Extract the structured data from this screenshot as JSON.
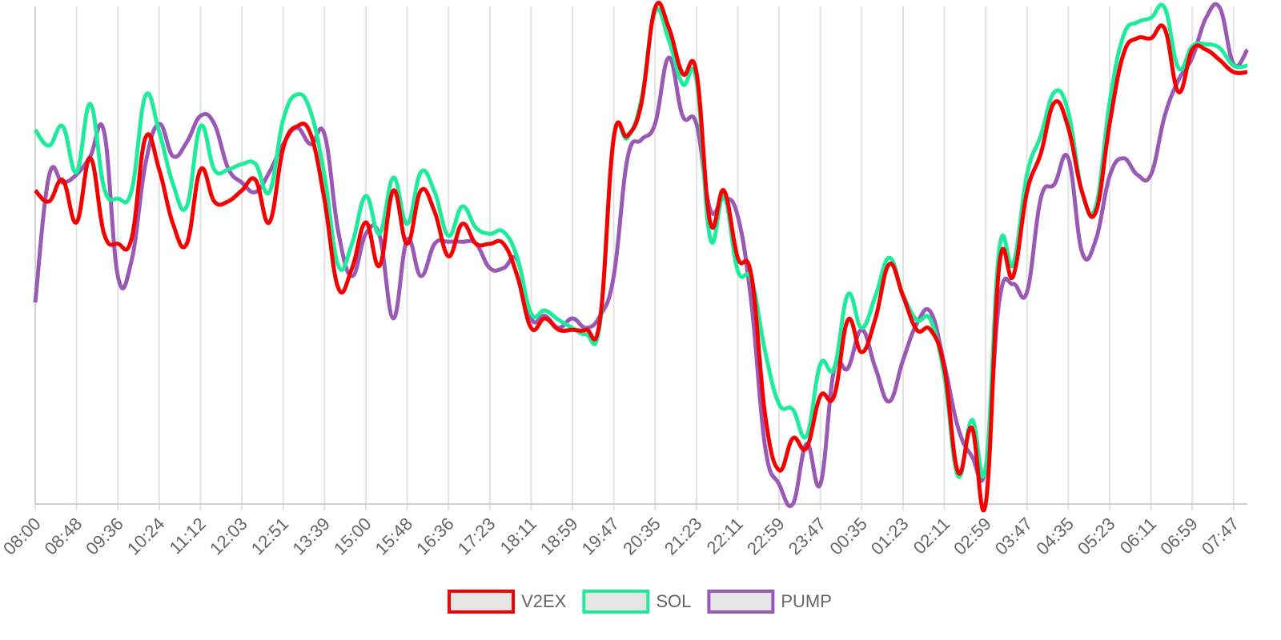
{
  "chart_data": {
    "type": "line",
    "categories": [
      "08:00",
      null,
      null,
      "08:48",
      null,
      null,
      "09:36",
      null,
      null,
      "10:24",
      null,
      null,
      "11:12",
      null,
      null,
      "12:03",
      null,
      null,
      "12:51",
      null,
      null,
      "13:39",
      null,
      null,
      "15:00",
      null,
      null,
      "15:48",
      null,
      null,
      "16:36",
      null,
      null,
      "17:23",
      null,
      null,
      "18:11",
      null,
      null,
      "18:59",
      null,
      null,
      "19:47",
      null,
      null,
      "20:35",
      null,
      null,
      "21:23",
      null,
      null,
      "22:11",
      null,
      null,
      "22:59",
      null,
      null,
      "23:47",
      null,
      null,
      "00:35",
      null,
      null,
      "01:23",
      null,
      null,
      "02:11",
      null,
      null,
      "02:59",
      null,
      null,
      "03:47",
      null,
      null,
      "04:35",
      null,
      null,
      "05:23",
      null,
      null,
      "06:11",
      null,
      null,
      "06:59",
      null,
      null,
      "07:47",
      null
    ],
    "ylim": [
      0,
      100
    ],
    "x_grid": true,
    "legend": "bottom",
    "series": [
      {
        "name": "V2EX",
        "color": "#f40000",
        "values": [
          63.0,
          60.8,
          65.1,
          56.6,
          69.5,
          54.3,
          52.3,
          53.4,
          73.6,
          67.2,
          56.3,
          52.3,
          67.2,
          60.8,
          60.8,
          63.0,
          65.1,
          56.6,
          71.5,
          75.9,
          74.3,
          61.1,
          43.4,
          47.4,
          56.6,
          47.9,
          63.0,
          52.3,
          63.0,
          58.7,
          49.8,
          56.3,
          52.3,
          52.3,
          52.3,
          45.8,
          35.4,
          37.3,
          35.0,
          35.0,
          35.0,
          37.0,
          73.6,
          74.0,
          80.4,
          99.7,
          95.7,
          86.5,
          86.8,
          56.6,
          63.0,
          49.5,
          45.8,
          17.7,
          6.8,
          13.2,
          11.3,
          21.7,
          21.7,
          37.0,
          30.5,
          37.3,
          48.2,
          41.8,
          35.0,
          35.0,
          27.3,
          6.4,
          15.3,
          0,
          48.2,
          45.8,
          62.7,
          70.4,
          80.7,
          75.6,
          62.7,
          58.7,
          76.4,
          90.4,
          93.6,
          93.6,
          95.5,
          82.8,
          91.3,
          91.3,
          89.2,
          86.8,
          86.8
        ]
      },
      {
        "name": "SOL",
        "color": "#1eeb9b",
        "values": [
          75.2,
          72.0,
          75.9,
          66.7,
          80.4,
          63.5,
          61.4,
          63.0,
          82.0,
          74.8,
          64.3,
          59.8,
          75.9,
          67.2,
          67.2,
          68.3,
          68.3,
          62.7,
          77.2,
          82.3,
          78.8,
          65.9,
          47.9,
          52.3,
          61.9,
          54.3,
          65.6,
          56.3,
          66.7,
          62.7,
          53.9,
          59.8,
          55.5,
          54.3,
          54.7,
          49.5,
          38.3,
          38.9,
          37.0,
          35.4,
          34.1,
          36.2,
          73.6,
          73.6,
          81.2,
          98.9,
          93.2,
          84.4,
          85.2,
          53.4,
          61.9,
          46.9,
          45.0,
          30.5,
          20.1,
          19.0,
          13.7,
          28.1,
          27.3,
          42.1,
          35.4,
          41.8,
          49.5,
          42.1,
          37.0,
          37.0,
          25.7,
          5.6,
          16.9,
          7.2,
          51.4,
          48.2,
          66.2,
          74.0,
          82.8,
          78.8,
          62.7,
          59.8,
          80.7,
          94.1,
          96.8,
          97.7,
          99.7,
          87.6,
          92.0,
          92.4,
          91.6,
          88.1,
          88.1
        ]
      },
      {
        "name": "PUMP",
        "color": "#9b59b6",
        "values": [
          40.5,
          65.9,
          64.6,
          66.2,
          69.9,
          74.8,
          45.8,
          49.0,
          68.3,
          76.4,
          69.9,
          72.7,
          78.0,
          76.4,
          67.5,
          64.6,
          62.7,
          66.7,
          72.3,
          75.6,
          72.3,
          74.3,
          54.7,
          45.8,
          54.3,
          53.9,
          37.3,
          53.1,
          45.8,
          52.3,
          52.7,
          52.7,
          52.3,
          47.4,
          47.4,
          49.0,
          37.3,
          37.8,
          35.4,
          37.3,
          35.4,
          37.8,
          45.8,
          69.5,
          73.2,
          76.4,
          89.7,
          78.0,
          76.4,
          59.2,
          61.4,
          57.9,
          40.2,
          11.3,
          4.0,
          0,
          12.1,
          4.0,
          27.0,
          27.3,
          35.0,
          27.3,
          20.6,
          28.9,
          36.2,
          38.6,
          28.1,
          15.3,
          9.6,
          7.2,
          41.0,
          44.2,
          42.6,
          61.4,
          64.3,
          69.5,
          50.6,
          53.1,
          65.9,
          69.5,
          66.2,
          66.2,
          78.0,
          85.2,
          89.7,
          97.7,
          99.7,
          88.4,
          91.3
        ]
      }
    ]
  }
}
